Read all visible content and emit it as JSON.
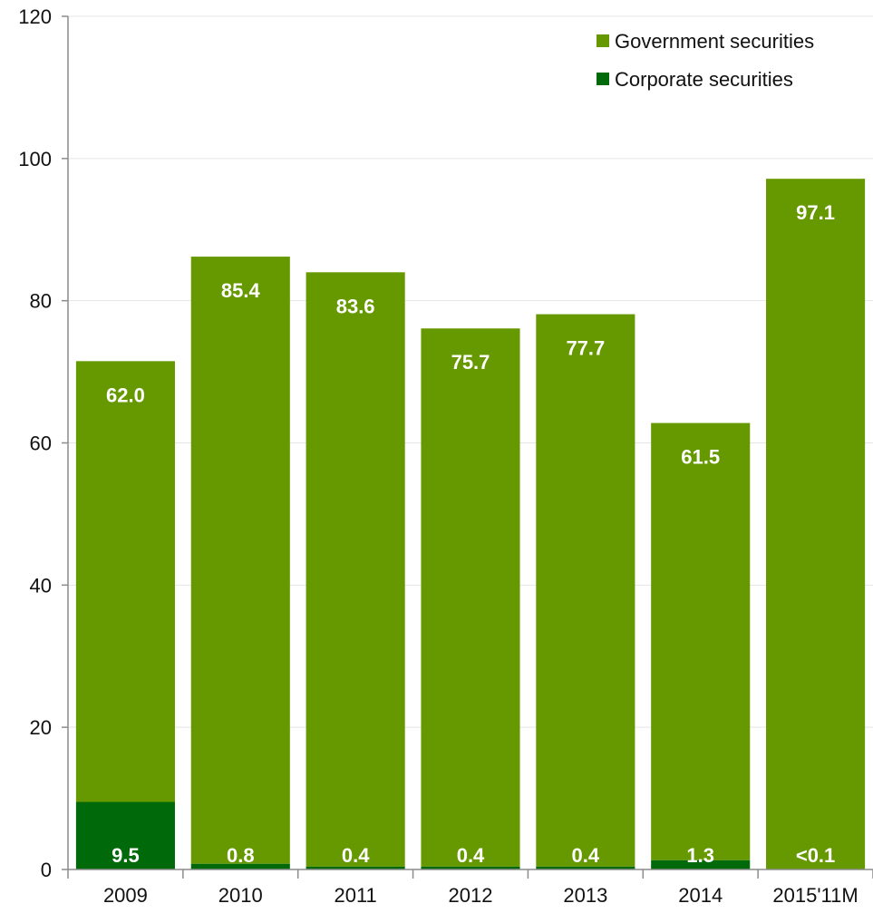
{
  "chart_data": {
    "type": "bar",
    "stacked": true,
    "categories": [
      "2009",
      "2010",
      "2011",
      "2012",
      "2013",
      "2014",
      "2015'11M"
    ],
    "series": [
      {
        "name": "Corporate securities",
        "color": "#00690A",
        "values": [
          9.5,
          0.8,
          0.4,
          0.4,
          0.4,
          1.3,
          0.05
        ],
        "labels": [
          "9.5",
          "0.8",
          "0.4",
          "0.4",
          "0.4",
          "1.3",
          "<0.1"
        ]
      },
      {
        "name": "Government securities",
        "color": "#669900",
        "values": [
          62.0,
          85.4,
          83.6,
          75.7,
          77.7,
          61.5,
          97.1
        ],
        "labels": [
          "62.0",
          "85.4",
          "83.6",
          "75.7",
          "77.7",
          "61.5",
          "97.1"
        ]
      }
    ],
    "legend_order": [
      "Government securities",
      "Corporate securities"
    ],
    "legend_position": "top-right",
    "ylim": [
      0,
      120
    ],
    "yticks": [
      "0",
      "20",
      "40",
      "60",
      "80",
      "100",
      "120"
    ],
    "grid": true,
    "title": "",
    "xlabel": "",
    "ylabel": ""
  }
}
